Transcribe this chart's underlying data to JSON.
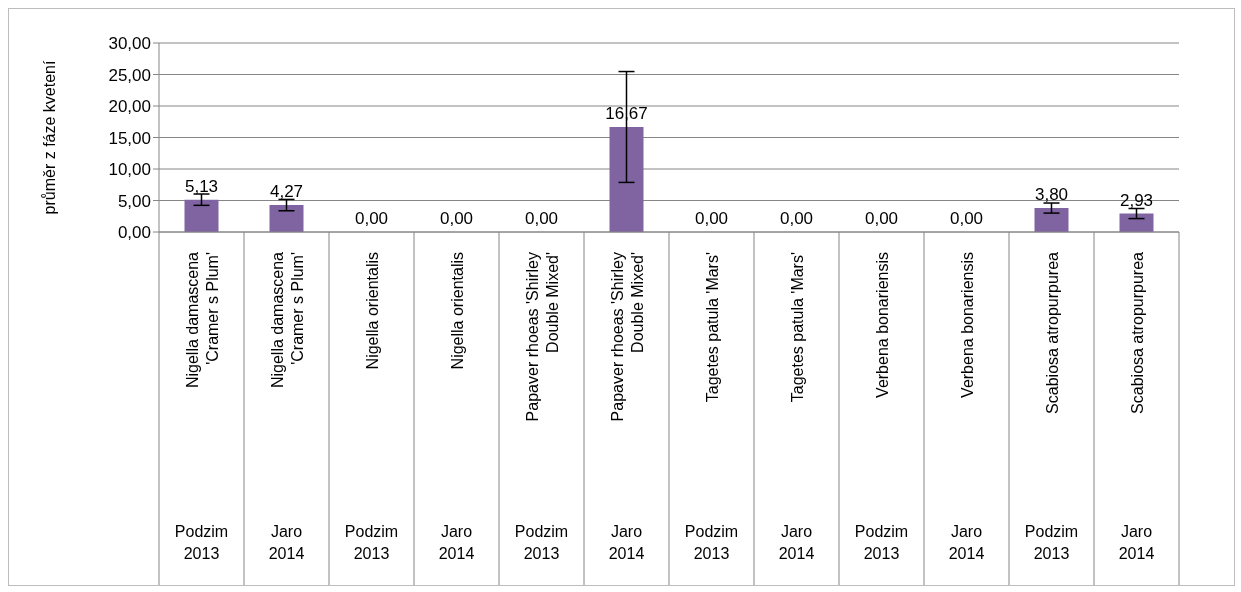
{
  "chart_data": {
    "type": "bar",
    "ylabel": "průměr z fáze kvetení",
    "categories": [
      "Nigella damascena 'Cramer s Plum'\nPodzim 2013",
      "Nigella damascena 'Cramer s Plum'\nJaro 2014",
      "Nigella orientalis\nPodzim 2013",
      "Nigella orientalis\nJaro 2014",
      "Papaver rhoeas 'Shirley Double Mixed'\nPodzim 2013",
      "Papaver rhoeas 'Shirley Double Mixed'\nJaro 2014",
      "Tagetes patula 'Mars'\nPodzim 2013",
      "Tagetes patula 'Mars'\nJaro 2014",
      "Verbena bonariensis\nPodzim 2013",
      "Verbena bonariensis\nJaro 2014",
      "Scabiosa atropurpurea\nPodzim 2013",
      "Scabiosa atropurpurea\nJaro 2014"
    ],
    "values": [
      5.13,
      4.27,
      0,
      0,
      0,
      16.67,
      0,
      0,
      0,
      0,
      3.8,
      2.93
    ],
    "value_labels": [
      "5,13",
      "4,27",
      "0,00",
      "0,00",
      "0,00",
      "16,67",
      "0,00",
      "0,00",
      "0,00",
      "0,00",
      "3,80",
      "2,93"
    ],
    "errors": [
      0.9,
      0.9,
      null,
      null,
      null,
      8.8,
      null,
      null,
      null,
      null,
      0.8,
      0.8
    ],
    "color": "#8064a2",
    "ylim": [
      0,
      30
    ],
    "yticks": [
      {
        "value": 0,
        "label": "0,00"
      },
      {
        "value": 5,
        "label": "5,00"
      },
      {
        "value": 10,
        "label": "10,00"
      },
      {
        "value": 15,
        "label": "15,00"
      },
      {
        "value": 20,
        "label": "20,00"
      },
      {
        "value": 25,
        "label": "25,00"
      },
      {
        "value": 30,
        "label": "30,00"
      }
    ],
    "grid": "y",
    "legend": false
  }
}
